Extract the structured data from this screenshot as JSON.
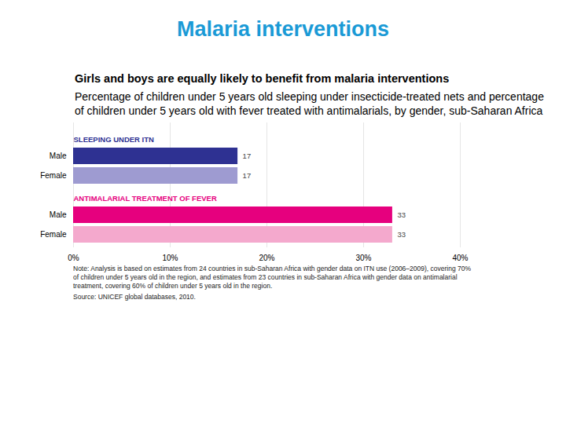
{
  "chart_data": {
    "type": "bar",
    "orientation": "horizontal",
    "title": "Malaria interventions",
    "subtitle": "Girls and boys are equally likely to benefit from malaria interventions",
    "description": "Percentage of children under 5 years old sleeping under insecticide-treated nets and percentage of children under 5 years old with fever treated with antimalarials, by gender, sub-Saharan Africa",
    "series": [
      {
        "name": "SLEEPING UNDER ITN",
        "categories": [
          "Male",
          "Female"
        ],
        "values": [
          17,
          17
        ],
        "colors": [
          "#2e3192",
          "#9e9bd1"
        ]
      },
      {
        "name": "ANTIMALARIAL TREATMENT OF FEVER",
        "categories": [
          "Male",
          "Female"
        ],
        "values": [
          33,
          33
        ],
        "colors": [
          "#e6007e",
          "#f4a9cd"
        ]
      }
    ],
    "xlim": [
      0,
      40
    ],
    "xticks": [
      {
        "value": 0,
        "label": "0%"
      },
      {
        "value": 10,
        "label": "10%"
      },
      {
        "value": 20,
        "label": "20%"
      },
      {
        "value": 30,
        "label": "30%"
      },
      {
        "value": 40,
        "label": "40%"
      }
    ],
    "grid": true,
    "data_labels": true,
    "note": "Note: Analysis is based on estimates from 24 countries in sub-Saharan Africa with gender data on ITN use (2006–2009), covering 70% of children under 5 years old in the region, and estimates from 23 countries in sub-Saharan Africa with gender data on antimalarial treatment, covering 60% of children under 5 years old in the region.",
    "source": "Source: UNICEF global databases, 2010."
  }
}
